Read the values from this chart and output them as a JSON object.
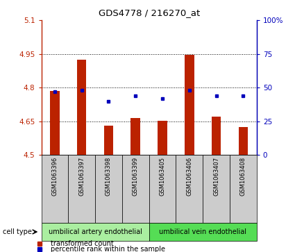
{
  "title": "GDS4778 / 216270_at",
  "samples": [
    "GSM1063396",
    "GSM1063397",
    "GSM1063398",
    "GSM1063399",
    "GSM1063405",
    "GSM1063406",
    "GSM1063407",
    "GSM1063408"
  ],
  "red_values": [
    4.785,
    4.925,
    4.63,
    4.663,
    4.653,
    4.947,
    4.67,
    4.625
  ],
  "blue_values": [
    47,
    48,
    40,
    44,
    42,
    48,
    44,
    44
  ],
  "ylim_left": [
    4.5,
    5.1
  ],
  "ylim_right": [
    0,
    100
  ],
  "yticks_left": [
    4.5,
    4.65,
    4.8,
    4.95,
    5.1
  ],
  "yticks_right": [
    0,
    25,
    50,
    75,
    100
  ],
  "ytick_labels_right": [
    "0",
    "25",
    "50",
    "75",
    "100%"
  ],
  "bar_color": "#bb2200",
  "dot_color": "#0000bb",
  "bar_bottom": 4.5,
  "cell_type_groups": [
    {
      "label": "umbilical artery endothelial",
      "color": "#aaeea0",
      "indices": [
        0,
        1,
        2,
        3
      ]
    },
    {
      "label": "umbilical vein endothelial",
      "color": "#55dd55",
      "indices": [
        4,
        5,
        6,
        7
      ]
    }
  ],
  "cell_type_label": "cell type",
  "legend_red_label": "transformed count",
  "legend_blue_label": "percentile rank within the sample",
  "sample_box_color": "#cccccc",
  "bar_width": 0.35
}
